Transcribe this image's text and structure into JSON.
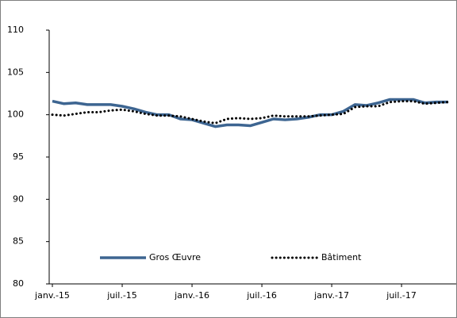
{
  "chart_data": {
    "type": "line",
    "categories": [
      "janv.-15",
      null,
      null,
      null,
      null,
      null,
      "juil.-15",
      null,
      null,
      null,
      null,
      null,
      "janv.-16",
      null,
      null,
      null,
      null,
      null,
      "juil.-16",
      null,
      null,
      null,
      null,
      null,
      "janv.-17",
      null,
      null,
      null,
      null,
      null,
      "juil.-17",
      null,
      null,
      null,
      null
    ],
    "series": [
      {
        "name": "Gros Œuvre",
        "color": "#3d6591",
        "style": "solid",
        "values": [
          101.6,
          101.3,
          101.4,
          101.2,
          101.2,
          101.2,
          101.0,
          100.7,
          100.3,
          100.0,
          100.0,
          99.5,
          99.4,
          99.0,
          98.6,
          98.8,
          98.8,
          98.7,
          99.1,
          99.5,
          99.4,
          99.5,
          99.7,
          100.0,
          100.0,
          100.4,
          101.2,
          101.1,
          101.4,
          101.8,
          101.8,
          101.8,
          101.4,
          101.5,
          101.5
        ]
      },
      {
        "name": "Bâtiment",
        "color": "#000000",
        "style": "dotted",
        "values": [
          100.0,
          99.9,
          100.1,
          100.3,
          100.3,
          100.5,
          100.6,
          100.4,
          100.1,
          99.9,
          99.9,
          99.8,
          99.5,
          99.2,
          99.0,
          99.5,
          99.6,
          99.5,
          99.6,
          99.9,
          99.8,
          99.8,
          99.8,
          99.9,
          100.0,
          100.1,
          100.9,
          101.0,
          101.0,
          101.5,
          101.6,
          101.6,
          101.3,
          101.4,
          101.5
        ]
      }
    ],
    "ylim": [
      80,
      110
    ],
    "yticks": [
      80,
      85,
      90,
      95,
      100,
      105,
      110
    ],
    "grid": false,
    "legend": "bottom-left"
  }
}
